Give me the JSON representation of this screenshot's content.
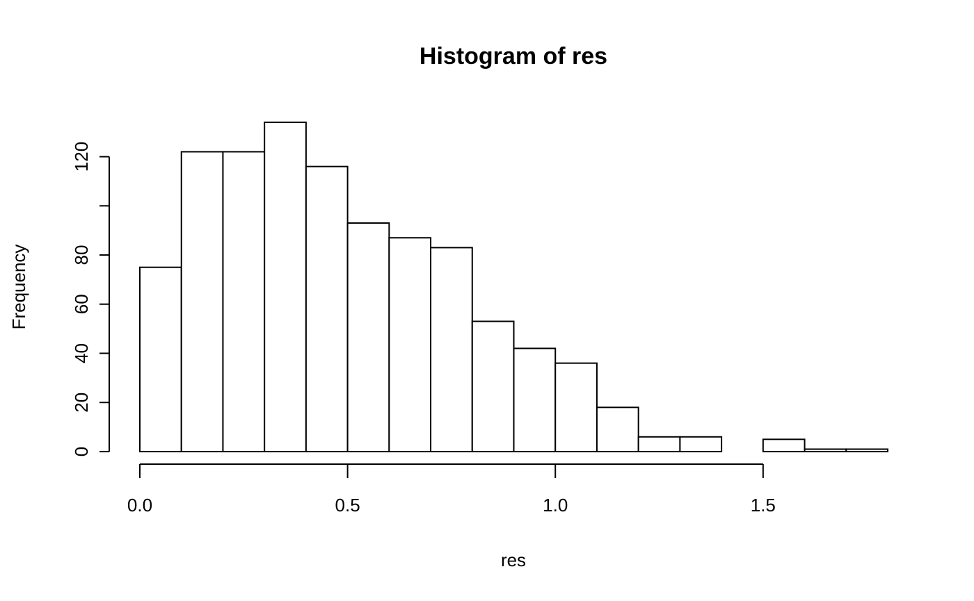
{
  "chart_data": {
    "type": "bar",
    "title": "Histogram of res",
    "xlabel": "res",
    "ylabel": "Frequency",
    "bin_edges": [
      0.0,
      0.1,
      0.2,
      0.3,
      0.4,
      0.5,
      0.6,
      0.7,
      0.8,
      0.9,
      1.0,
      1.1,
      1.2,
      1.3,
      1.4,
      1.5,
      1.6,
      1.7,
      1.8
    ],
    "values": [
      75,
      122,
      122,
      134,
      116,
      93,
      87,
      83,
      53,
      42,
      36,
      18,
      6,
      6,
      0,
      5,
      1,
      1
    ],
    "xticks": [
      0.0,
      0.5,
      1.0,
      1.5
    ],
    "xtick_labels": [
      "0.0",
      "0.5",
      "1.0",
      "1.5"
    ],
    "yticks": [
      0,
      20,
      40,
      60,
      80,
      100,
      120
    ],
    "ytick_labels": [
      "0",
      "20",
      "40",
      "60",
      "80",
      "",
      "120"
    ],
    "xlim": [
      0.0,
      1.8
    ],
    "ylim": [
      0,
      134
    ],
    "grid": false,
    "bar_fill": "#ffffff",
    "bar_stroke": "#000000"
  }
}
